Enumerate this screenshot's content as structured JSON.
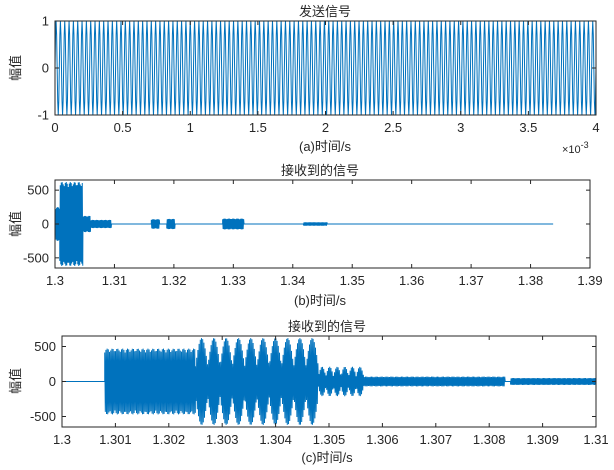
{
  "chart_data": [
    {
      "type": "line",
      "title": "发送信号",
      "xlabel": "(a)时间/s",
      "ylabel": "幅值",
      "xlim": [
        0,
        4
      ],
      "ylim": [
        -1,
        1
      ],
      "x_exponent_label": "×10",
      "x_exponent_power": "-3",
      "xticks": [
        0,
        0.5,
        1,
        1.5,
        2,
        2.5,
        3,
        3.5,
        4
      ],
      "xtick_labels": [
        "0",
        "0.5",
        "1",
        "1.5",
        "2",
        "2.5",
        "3",
        "3.5",
        "4"
      ],
      "yticks": [
        -1,
        0,
        1
      ],
      "ytick_labels": [
        "-1",
        "0",
        "1"
      ],
      "color": "#0072BD",
      "signal": {
        "amplitude": 1,
        "cycles_in_view": 125
      }
    },
    {
      "type": "line",
      "title": "接收到的信号",
      "xlabel": "(b)时间/s",
      "ylabel": "幅值",
      "xlim": [
        1.3,
        1.39
      ],
      "ylim": [
        -650,
        650
      ],
      "xticks": [
        1.3,
        1.31,
        1.32,
        1.33,
        1.34,
        1.35,
        1.36,
        1.37,
        1.38,
        1.39
      ],
      "xtick_labels": [
        "1.3",
        "1.31",
        "1.32",
        "1.33",
        "1.34",
        "1.35",
        "1.36",
        "1.37",
        "1.38",
        "1.39"
      ],
      "yticks": [
        -500,
        0,
        500
      ],
      "ytick_labels": [
        "-500",
        "0",
        "500"
      ],
      "color": "#0072BD",
      "signal_end": 1.3838,
      "bursts": [
        {
          "start": 1.3001,
          "end": 1.3008,
          "amp": 250
        },
        {
          "start": 1.3008,
          "end": 1.3047,
          "amp": 620
        },
        {
          "start": 1.3047,
          "end": 1.306,
          "amp": 120
        },
        {
          "start": 1.306,
          "end": 1.3095,
          "amp": 60
        },
        {
          "start": 1.3162,
          "end": 1.3176,
          "amp": 70
        },
        {
          "start": 1.3188,
          "end": 1.3202,
          "amp": 75
        },
        {
          "start": 1.3282,
          "end": 1.3318,
          "amp": 80
        },
        {
          "start": 1.3418,
          "end": 1.3458,
          "amp": 25
        }
      ]
    },
    {
      "type": "line",
      "title": "接收到的信号",
      "xlabel": "(c)时间/s",
      "ylabel": "幅值",
      "xlim": [
        1.3,
        1.31
      ],
      "ylim": [
        -650,
        650
      ],
      "xticks": [
        1.3,
        1.301,
        1.302,
        1.303,
        1.304,
        1.305,
        1.306,
        1.307,
        1.308,
        1.309,
        1.31
      ],
      "xtick_labels": [
        "1.3",
        "1.301",
        "1.302",
        "1.303",
        "1.304",
        "1.305",
        "1.306",
        "1.307",
        "1.308",
        "1.309",
        "1.31"
      ],
      "yticks": [
        -500,
        0,
        500
      ],
      "ytick_labels": [
        "-500",
        "0",
        "500"
      ],
      "color": "#0072BD",
      "bursts": [
        {
          "start": 1.3008,
          "end": 1.3025,
          "amp": 470
        },
        {
          "start": 1.3025,
          "end": 1.3048,
          "amp": 620,
          "beating": true,
          "beats": 10
        },
        {
          "start": 1.3048,
          "end": 1.30565,
          "amp": 210,
          "beating": true,
          "beats": 6
        },
        {
          "start": 1.30565,
          "end": 1.3083,
          "amp": 70
        },
        {
          "start": 1.3084,
          "end": 1.31,
          "amp": 50
        }
      ]
    }
  ]
}
